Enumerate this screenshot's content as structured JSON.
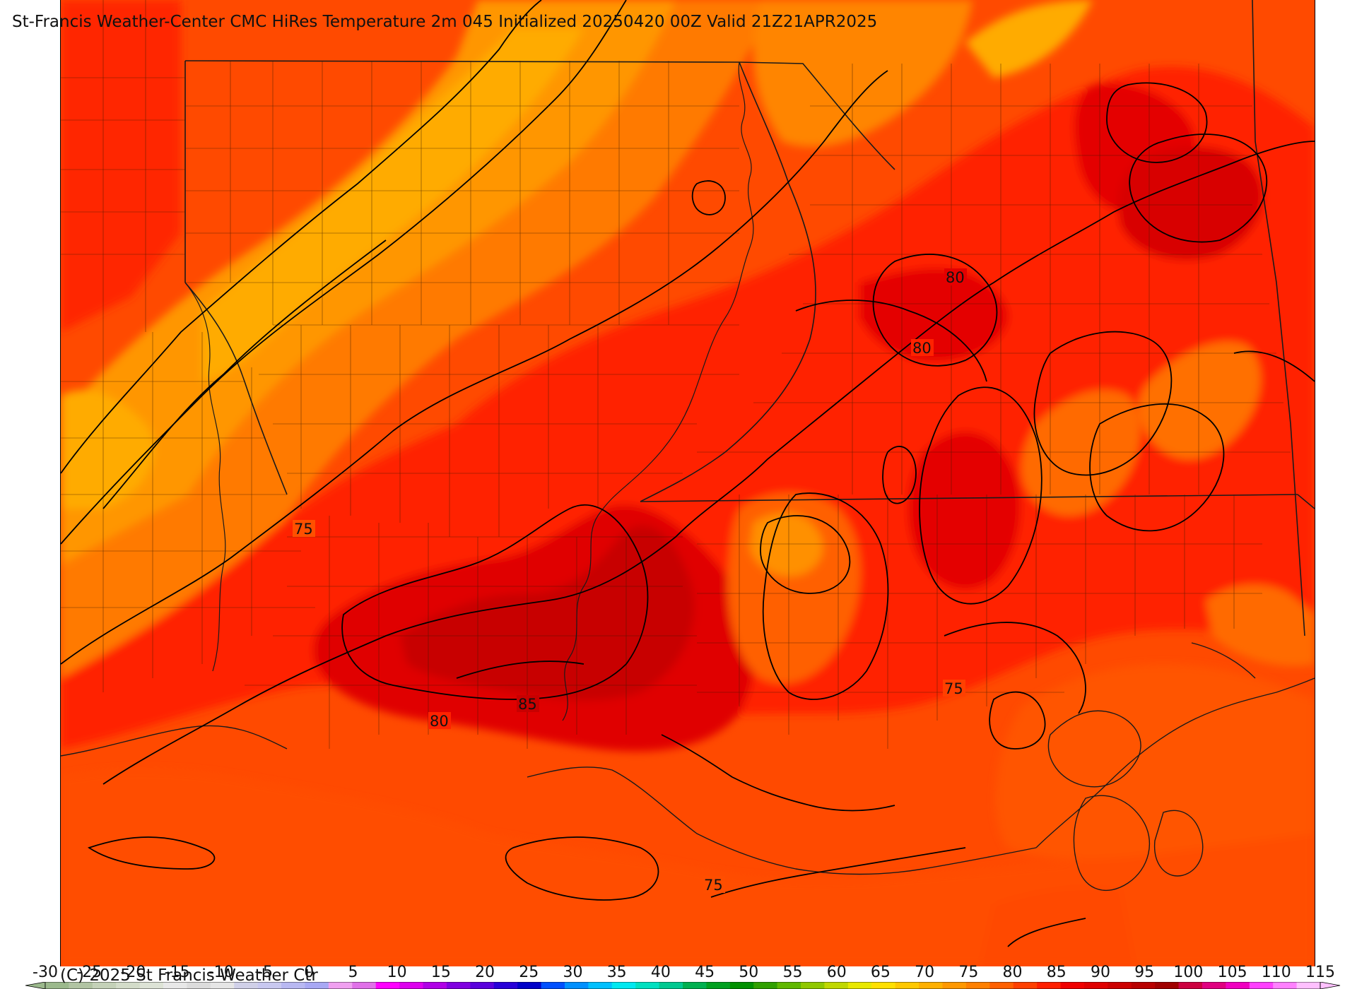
{
  "title": "St-Francis Weather-Center CMC HiRes Temperature 2m  045 Initialized 20250420 00Z Valid 21Z21APR2025",
  "copyright": "(C) 2025 St Francis Weather Ctr",
  "contour_labels": [
    "80",
    "80",
    "75",
    "75",
    "85",
    "80",
    "75"
  ],
  "colorbar": {
    "ticks": [
      "-30",
      "-25",
      "-20",
      "-15",
      "-10",
      "-5",
      "0",
      "5",
      "10",
      "15",
      "20",
      "25",
      "30",
      "35",
      "40",
      "45",
      "50",
      "55",
      "60",
      "65",
      "70",
      "75",
      "80",
      "85",
      "90",
      "95",
      "100",
      "105",
      "110",
      "115"
    ],
    "colors": [
      "#9bb98c",
      "#b1c4a3",
      "#c4d1b8",
      "#d3dcc9",
      "#dde3d6",
      "#e8e8e8",
      "#dcdcdc",
      "#e6e6e6",
      "#d0d0e8",
      "#c8c8f0",
      "#b8b8f2",
      "#a8a8f4",
      "#f0a0f0",
      "#e070e8",
      "#ff00ff",
      "#dd00ee",
      "#b000e6",
      "#8000e0",
      "#5a00dc",
      "#2800d8",
      "#0000c8",
      "#0050ff",
      "#0090ff",
      "#00c0ff",
      "#00e8f0",
      "#00e0c0",
      "#00c890",
      "#00b050",
      "#00a020",
      "#009000",
      "#30a000",
      "#60b800",
      "#90c800",
      "#c0d800",
      "#e8e800",
      "#ffe000",
      "#ffc800",
      "#ffb000",
      "#ff9800",
      "#ff8000",
      "#ff6000",
      "#ff4000",
      "#ff2000",
      "#f00000",
      "#e00000",
      "#cc0000",
      "#b80000",
      "#a00000",
      "#cc0040",
      "#e00080",
      "#f000c0",
      "#ff40ff",
      "#ff80ff",
      "#ffc0ff"
    ]
  }
}
